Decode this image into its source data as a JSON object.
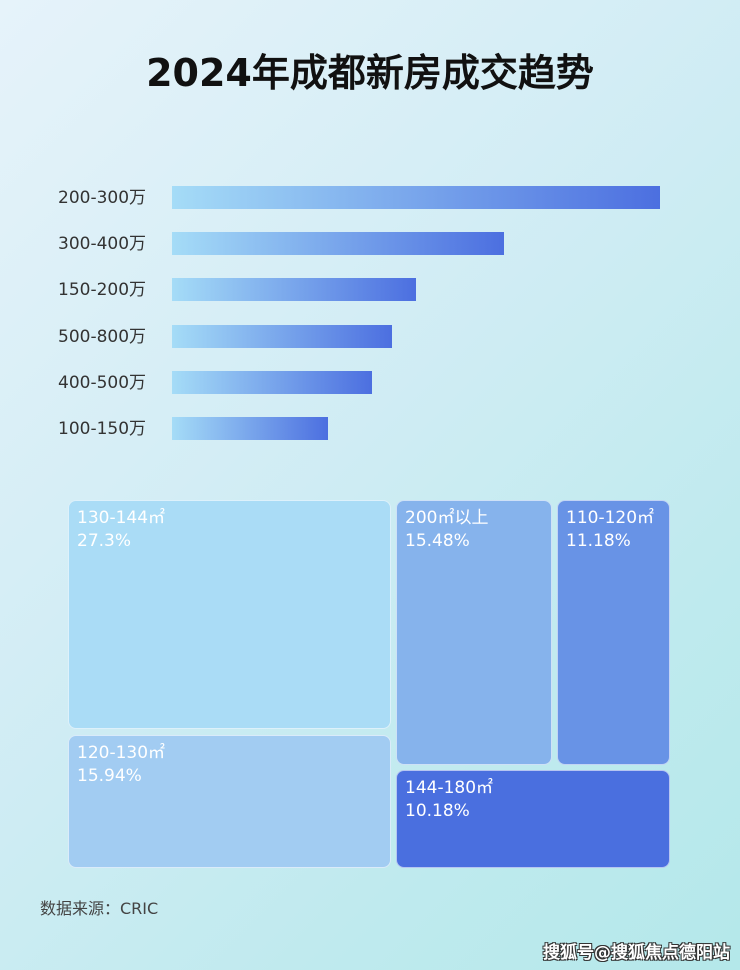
{
  "chart_data": [
    {
      "type": "bar",
      "orientation": "horizontal",
      "title": "2024年成都新房成交趋势",
      "categories": [
        "200-300万",
        "300-400万",
        "150-200万",
        "500-800万",
        "400-500万",
        "100-150万"
      ],
      "values": [
        100,
        68,
        50,
        45,
        41,
        32
      ],
      "value_note_unit": "relative bar length (no values printed)",
      "colors": [
        "#a5dcf7",
        "#4c6fe0"
      ],
      "grid": false
    },
    {
      "type": "treemap",
      "tiles": [
        {
          "label": "130-144㎡",
          "value": "27.3%",
          "color": "#aadcf6"
        },
        {
          "label": "120-130㎡",
          "value": "15.94%",
          "color": "#a2ccf2"
        },
        {
          "label": "200㎡以上",
          "value": "15.48%",
          "color": "#86b3ec"
        },
        {
          "label": "110-120㎡",
          "value": "11.18%",
          "color": "#6893e6"
        },
        {
          "label": "144-180㎡",
          "value": "10.18%",
          "color": "#4a6fdf"
        }
      ]
    }
  ],
  "source": "数据来源：CRIC",
  "watermark": "搜狐号@搜狐焦点德阳站"
}
